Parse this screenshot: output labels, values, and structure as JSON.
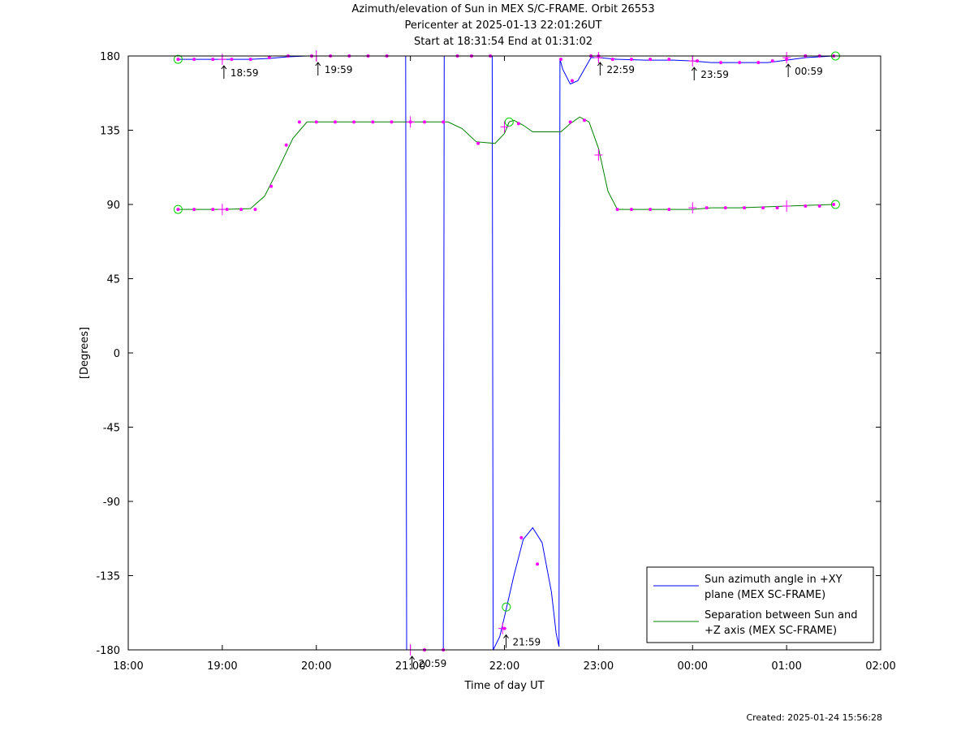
{
  "chart_data": {
    "type": "line",
    "title": "Azimuth/elevation of Sun in MEX S/C-FRAME.  Orbit 26553",
    "subtitle": [
      "Pericenter at 2025-01-13 22:01:26UT",
      "Start at 18:31:54 End at 01:31:02"
    ],
    "xlabel": "Time of day UT",
    "ylabel": "[Degrees]",
    "footer": "Created: 2025-01-24 15:56:28",
    "x_unit": "hours since 18:00 UT",
    "xlim": [
      0,
      8
    ],
    "ylim": [
      -180,
      180
    ],
    "x_ticks": [
      {
        "v": 0,
        "label": "18:00"
      },
      {
        "v": 1,
        "label": "19:00"
      },
      {
        "v": 2,
        "label": "20:00"
      },
      {
        "v": 3,
        "label": "21:00"
      },
      {
        "v": 4,
        "label": "22:00"
      },
      {
        "v": 5,
        "label": "23:00"
      },
      {
        "v": 6,
        "label": "00:00"
      },
      {
        "v": 7,
        "label": "01:00"
      },
      {
        "v": 8,
        "label": "02:00"
      }
    ],
    "y_ticks": [
      {
        "v": 180,
        "label": "180"
      },
      {
        "v": 135,
        "label": "135"
      },
      {
        "v": 90,
        "label": "90"
      },
      {
        "v": 45,
        "label": "45"
      },
      {
        "v": 0,
        "label": "0"
      },
      {
        "v": -45,
        "label": "-45"
      },
      {
        "v": -90,
        "label": "-90"
      },
      {
        "v": -135,
        "label": "-135"
      },
      {
        "v": -180,
        "label": "-180"
      }
    ],
    "legend": "bottom-right",
    "series": [
      {
        "name": "Sun azimuth angle in +XY plane (MEX SC-FRAME)",
        "legend_lines": [
          "Sun azimuth angle in +XY",
          "plane (MEX SC-FRAME)"
        ],
        "color": "#0000ff",
        "points": [
          [
            0.53,
            178
          ],
          [
            0.8,
            178
          ],
          [
            1.0,
            178
          ],
          [
            1.3,
            178
          ],
          [
            1.5,
            178.5
          ],
          [
            1.7,
            179.5
          ],
          [
            1.9,
            180
          ],
          [
            2.2,
            180
          ],
          [
            2.5,
            180
          ],
          [
            2.8,
            180
          ],
          [
            2.95,
            180
          ],
          [
            2.96,
            -180
          ],
          [
            3.1,
            -180
          ],
          [
            3.35,
            -180
          ],
          [
            3.36,
            180
          ],
          [
            3.6,
            180
          ],
          [
            3.87,
            180
          ],
          [
            3.88,
            -180
          ],
          [
            3.95,
            -172
          ],
          [
            4.0,
            -160
          ],
          [
            4.1,
            -135
          ],
          [
            4.2,
            -113
          ],
          [
            4.3,
            -106
          ],
          [
            4.4,
            -115
          ],
          [
            4.5,
            -145
          ],
          [
            4.55,
            -170
          ],
          [
            4.58,
            -178
          ],
          [
            4.59,
            178
          ],
          [
            4.62,
            172
          ],
          [
            4.7,
            163
          ],
          [
            4.78,
            165
          ],
          [
            4.85,
            172
          ],
          [
            4.92,
            179
          ],
          [
            5.0,
            179
          ],
          [
            5.2,
            178
          ],
          [
            5.5,
            177.5
          ],
          [
            5.8,
            177.5
          ],
          [
            6.0,
            177
          ],
          [
            6.2,
            176
          ],
          [
            6.5,
            176
          ],
          [
            6.8,
            176
          ],
          [
            7.0,
            177.5
          ],
          [
            7.2,
            179
          ],
          [
            7.5,
            180
          ]
        ],
        "markers": [
          [
            0.53,
            178
          ],
          [
            0.7,
            178
          ],
          [
            0.9,
            178
          ],
          [
            1.1,
            178
          ],
          [
            1.3,
            178
          ],
          [
            1.5,
            179
          ],
          [
            1.7,
            180
          ],
          [
            1.95,
            180
          ],
          [
            2.15,
            180
          ],
          [
            2.35,
            180
          ],
          [
            2.55,
            180
          ],
          [
            2.75,
            180
          ],
          [
            3.15,
            -180
          ],
          [
            3.35,
            -180
          ],
          [
            3.5,
            180
          ],
          [
            3.65,
            180
          ],
          [
            3.85,
            180
          ],
          [
            4.0,
            -167
          ],
          [
            4.18,
            -112
          ],
          [
            4.35,
            -128
          ],
          [
            4.6,
            178
          ],
          [
            4.72,
            165
          ],
          [
            4.92,
            180
          ],
          [
            5.0,
            180
          ],
          [
            5.15,
            178
          ],
          [
            5.35,
            178
          ],
          [
            5.55,
            178
          ],
          [
            5.75,
            178
          ],
          [
            6.05,
            177
          ],
          [
            6.3,
            176
          ],
          [
            6.5,
            176
          ],
          [
            6.7,
            176
          ],
          [
            6.85,
            177
          ],
          [
            7.0,
            178
          ],
          [
            7.2,
            180
          ],
          [
            7.35,
            180
          ],
          [
            7.5,
            180
          ]
        ]
      },
      {
        "name": "Separation between Sun and +Z axis (MEX SC-FRAME)",
        "legend_lines": [
          "Separation between Sun and",
          "+Z axis (MEX SC-FRAME)"
        ],
        "color": "#008000",
        "points": [
          [
            0.53,
            87
          ],
          [
            0.8,
            87
          ],
          [
            1.0,
            87
          ],
          [
            1.3,
            87.5
          ],
          [
            1.45,
            95
          ],
          [
            1.6,
            112
          ],
          [
            1.75,
            130
          ],
          [
            1.9,
            140
          ],
          [
            2.1,
            140
          ],
          [
            2.5,
            140
          ],
          [
            3.0,
            140
          ],
          [
            3.4,
            140
          ],
          [
            3.55,
            136
          ],
          [
            3.7,
            128
          ],
          [
            3.9,
            127
          ],
          [
            4.0,
            133
          ],
          [
            4.05,
            140
          ],
          [
            4.1,
            141
          ],
          [
            4.2,
            138
          ],
          [
            4.3,
            134
          ],
          [
            4.5,
            134
          ],
          [
            4.6,
            134
          ],
          [
            4.7,
            139
          ],
          [
            4.8,
            143
          ],
          [
            4.9,
            140
          ],
          [
            5.0,
            124
          ],
          [
            5.1,
            98
          ],
          [
            5.2,
            87
          ],
          [
            5.5,
            87
          ],
          [
            6.0,
            87
          ],
          [
            6.2,
            88
          ],
          [
            6.5,
            88
          ],
          [
            7.0,
            89
          ],
          [
            7.5,
            90
          ]
        ],
        "markers": [
          [
            0.53,
            87
          ],
          [
            0.7,
            87
          ],
          [
            0.9,
            87
          ],
          [
            1.05,
            87
          ],
          [
            1.2,
            87
          ],
          [
            1.35,
            87
          ],
          [
            1.52,
            101
          ],
          [
            1.68,
            126
          ],
          [
            1.82,
            140
          ],
          [
            2.0,
            140
          ],
          [
            2.2,
            140
          ],
          [
            2.4,
            140
          ],
          [
            2.6,
            140
          ],
          [
            2.8,
            140
          ],
          [
            3.0,
            140
          ],
          [
            3.15,
            140
          ],
          [
            3.35,
            140
          ],
          [
            3.72,
            127
          ],
          [
            4.15,
            139
          ],
          [
            4.7,
            140
          ],
          [
            4.85,
            141
          ],
          [
            5.2,
            87
          ],
          [
            5.35,
            87
          ],
          [
            5.55,
            87
          ],
          [
            5.75,
            87
          ],
          [
            6.15,
            88
          ],
          [
            6.35,
            88
          ],
          [
            6.55,
            88
          ],
          [
            6.75,
            88
          ],
          [
            6.9,
            88
          ],
          [
            7.2,
            89
          ],
          [
            7.35,
            89
          ],
          [
            7.5,
            90
          ]
        ]
      }
    ],
    "annotations": [
      {
        "x": 1.0,
        "y": 178,
        "label": "18:59"
      },
      {
        "x": 2.0,
        "y": 180,
        "label": "19:59"
      },
      {
        "x": 3.0,
        "y": -180,
        "label": "20:59"
      },
      {
        "x": 4.0,
        "y": -167,
        "label": "21:59"
      },
      {
        "x": 5.0,
        "y": 180,
        "label": "22:59"
      },
      {
        "x": 6.0,
        "y": 177,
        "label": "23:59"
      },
      {
        "x": 7.0,
        "y": 179,
        "label": "00:59"
      }
    ],
    "cross_markers": [
      [
        1.0,
        178
      ],
      [
        2.0,
        180
      ],
      [
        3.0,
        -180
      ],
      [
        3.98,
        -167
      ],
      [
        4.0,
        137
      ],
      [
        5.0,
        179
      ],
      [
        6.0,
        177
      ],
      [
        7.0,
        179
      ],
      [
        1.0,
        87
      ],
      [
        3.0,
        140
      ],
      [
        5.0,
        120
      ],
      [
        6.0,
        88
      ],
      [
        7.0,
        89
      ]
    ],
    "circle_markers": [
      [
        0.53,
        178
      ],
      [
        7.52,
        180
      ],
      [
        0.53,
        87
      ],
      [
        7.52,
        90
      ],
      [
        4.05,
        140
      ],
      [
        4.02,
        -154
      ]
    ]
  }
}
